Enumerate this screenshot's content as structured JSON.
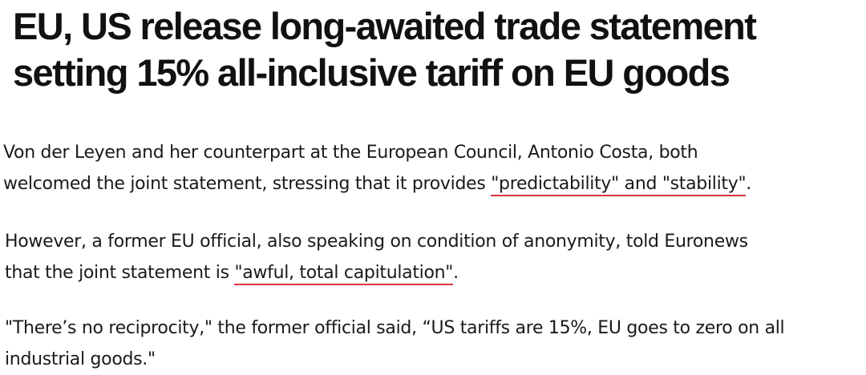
{
  "article": {
    "headline": {
      "line1": "EU, US release long-awaited trade statement",
      "line2": "setting 15% all-inclusive tariff on EU goods"
    },
    "paragraphs": [
      {
        "line1": "Von der Leyen and her counterpart at the European Council, Antonio Costa, both",
        "line2_before": "welcomed the joint statement, stressing that it provides ",
        "line2_highlight": "\"predictability\" and \"stability\"",
        "line2_after": "."
      },
      {
        "line1": "However, a former EU official, also speaking on condition of anonymity, told Euronews",
        "line2_before": "that the joint statement is ",
        "line2_highlight": "\"awful, total capitulation\"",
        "line2_after": "."
      },
      {
        "line1": "\"There’s no reciprocity,\" the former official said, “US tariffs are 15%, EU goes to zero on all",
        "line2": "industrial goods.\""
      }
    ],
    "highlight_color": "#d9363e"
  }
}
